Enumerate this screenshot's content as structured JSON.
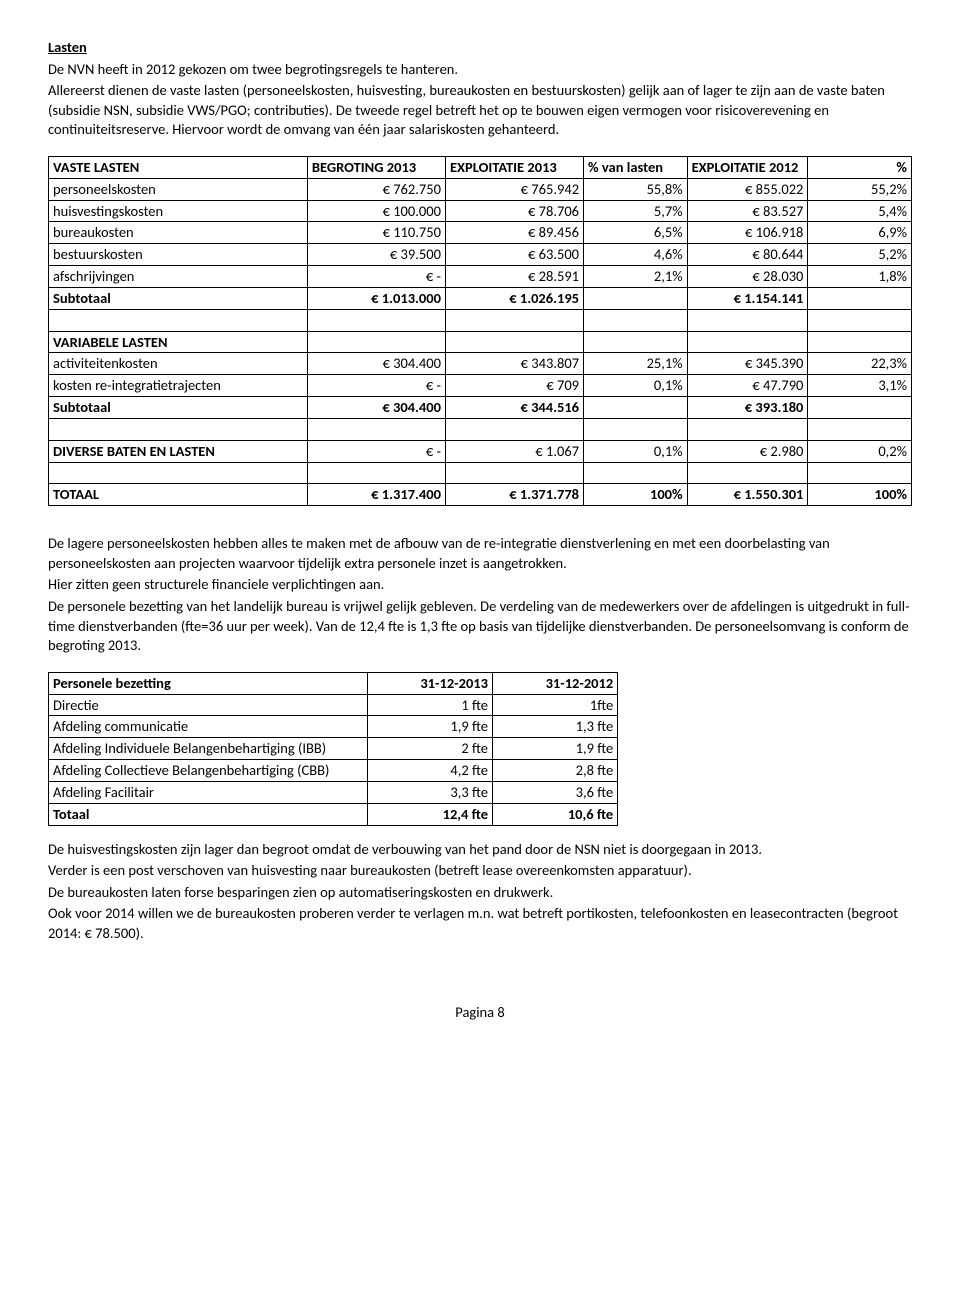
{
  "heading": "Lasten",
  "intro": [
    "De NVN heeft in 2012 gekozen om twee begrotingsregels te hanteren.",
    "Allereerst dienen de vaste lasten (personeelskosten, huisvesting, bureaukosten en bestuurskosten) gelijk aan of lager te zijn aan de vaste baten (subsidie NSN, subsidie VWS/PGO; contributies). De tweede regel betreft het op te bouwen eigen vermogen voor risicoverevening en continuiteitsreserve. Hiervoor wordt de omvang van één jaar salariskosten gehanteerd."
  ],
  "table1": {
    "colwidths": [
      "30%",
      "16%",
      "16%",
      "12%",
      "14%",
      "12%"
    ],
    "header": [
      "VASTE LASTEN",
      "BEGROTING 2013",
      "EXPLOITATIE 2013",
      "% van lasten",
      "EXPLOITATIE 2012",
      "%"
    ],
    "rows1": [
      [
        "personeelskosten",
        "€          762.750",
        "€          765.942",
        "55,8%",
        "€        855.022",
        "55,2%"
      ],
      [
        "huisvestingskosten",
        "€          100.000",
        "€            78.706",
        "5,7%",
        "€          83.527",
        "5,4%"
      ],
      [
        "bureaukosten",
        "€          110.750",
        "€            89.456",
        "6,5%",
        "€        106.918",
        "6,9%"
      ],
      [
        "bestuurskosten",
        "€            39.500",
        "€            63.500",
        "4,6%",
        "€          80.644",
        "5,2%"
      ],
      [
        "afschrijvingen",
        "€                    -",
        "€            28.591",
        "2,1%",
        "€          28.030",
        "1,8%"
      ]
    ],
    "subtotal1": [
      "Subtotaal",
      "€       1.013.000",
      "€       1.026.195",
      "",
      "€     1.154.141",
      ""
    ],
    "spacer": [
      "",
      "",
      "",
      "",
      "",
      ""
    ],
    "varheader": [
      "VARIABELE LASTEN",
      "",
      "",
      "",
      "",
      ""
    ],
    "rows2": [
      [
        "activiteitenkosten",
        "€          304.400",
        "€          343.807",
        "25,1%",
        "€        345.390",
        "22,3%"
      ],
      [
        "kosten re-integratietrajecten",
        "€                    -",
        "€                 709",
        "0,1%",
        "€          47.790",
        "3,1%"
      ]
    ],
    "subtotal2": [
      "Subtotaal",
      "€          304.400",
      "€          344.516",
      "",
      "€        393.180",
      ""
    ],
    "diverse": [
      "DIVERSE BATEN EN LASTEN",
      "€                    -",
      "€              1.067",
      "0,1%",
      "€            2.980",
      "0,2%"
    ],
    "totaal": [
      "TOTAAL",
      "€       1.317.400",
      "€       1.371.778",
      "100%",
      "€     1.550.301",
      "100%"
    ]
  },
  "mid": [
    "De lagere personeelskosten hebben alles te maken met de afbouw van de re-integratie dienstverlening en met een doorbelasting  van personeelskosten aan projecten waarvoor tijdelijk extra personele inzet is aangetrokken.",
    "Hier zitten geen structurele  financiele verplichtingen aan.",
    "De personele bezetting van het landelijk bureau is vrijwel gelijk gebleven. De verdeling van de medewerkers over de afdelingen is uitgedrukt in full-time dienstverbanden (fte=36 uur per week). Van de 12,4 fte is 1,3 fte op basis van tijdelijke dienstverbanden. De personeelsomvang is conform de begroting 2013."
  ],
  "table2": {
    "colwidths": [
      "50%",
      "25%",
      "25%"
    ],
    "header": [
      "Personele bezetting",
      "31-12-2013",
      "31-12-2012"
    ],
    "rows": [
      [
        "Directie",
        "1 fte",
        "1fte"
      ],
      [
        "Afdeling communicatie",
        "1,9 fte",
        "1,3 fte"
      ],
      [
        "Afdeling Individuele Belangenbehartiging (IBB)",
        "2 fte",
        "1,9 fte"
      ],
      [
        "Afdeling Collectieve Belangenbehartiging (CBB)",
        "4,2 fte",
        "2,8 fte"
      ],
      [
        "Afdeling Facilitair",
        "3,3 fte",
        "3,6 fte"
      ]
    ],
    "totaal": [
      "Totaal",
      "12,4 fte",
      "10,6 fte"
    ]
  },
  "outro": [
    "De huisvestingskosten zijn lager dan begroot omdat de verbouwing van het pand door de NSN niet is doorgegaan in 2013.",
    "Verder is een post verschoven van huisvesting naar bureaukosten (betreft lease overeenkomsten apparatuur).",
    "De bureaukosten laten forse besparingen zien op automatiseringskosten en drukwerk.",
    "Ook voor 2014 willen we de bureaukosten proberen verder te verlagen m.n. wat betreft portikosten, telefoonkosten en leasecontracten (begroot 2014: € 78.500)."
  ],
  "footer": "Pagina 8"
}
